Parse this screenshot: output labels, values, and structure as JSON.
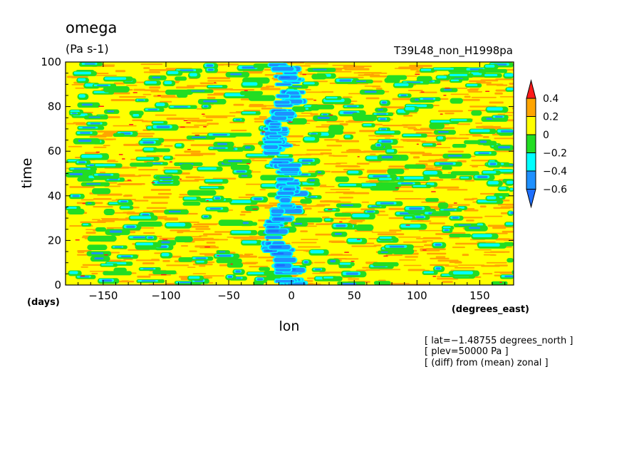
{
  "chart_data": {
    "type": "heatmap",
    "title": "omega",
    "units": "(Pa s-1)",
    "run_label": "T39L48_non_H1998pa",
    "xlabel": "lon",
    "xunits": "(degrees_east)",
    "ylabel": "time",
    "yunits": "(days)",
    "xlim": [
      -180,
      177
    ],
    "ylim": [
      0,
      100
    ],
    "x_ticks": [
      -150,
      -100,
      -50,
      0,
      50,
      100,
      150
    ],
    "x_tick_labels": [
      "−150",
      "−100",
      "−50",
      "0",
      "50",
      "100",
      "150"
    ],
    "y_ticks": [
      0,
      20,
      40,
      60,
      80,
      100
    ],
    "y_tick_labels": [
      "0",
      "20",
      "40",
      "60",
      "80",
      "100"
    ],
    "colorbar": {
      "levels": [
        -0.6,
        -0.4,
        -0.2,
        0,
        0.2,
        0.4
      ],
      "level_labels": [
        "−0.6",
        "−0.4",
        "−0.2",
        "0",
        "0.2",
        "0.4"
      ],
      "colors": [
        "#1e6fff",
        "#1e90ff",
        "#00ffff",
        "#22dd22",
        "#ffff00",
        "#ffa500",
        "#ff1a1a"
      ],
      "extend": "both"
    },
    "annotations": [
      "[ lat=−1.48755 degrees_north ]",
      "[ plev=50000 Pa ]",
      "[ (diff) from (mean) zonal ]"
    ]
  }
}
